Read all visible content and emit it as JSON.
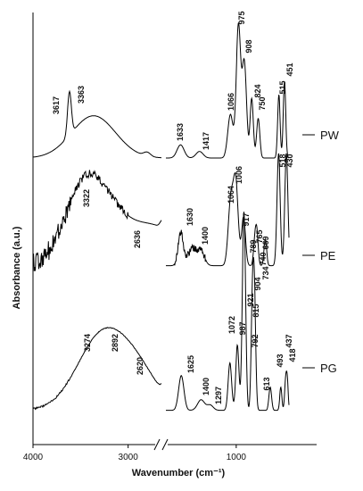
{
  "chart_data": {
    "type": "line",
    "xlabel": "Wavenumber (cm⁻¹)",
    "ylabel": "Absorbance (a.u.)",
    "x_ticks": [
      "4000",
      "3000",
      "1000"
    ],
    "x_break": true,
    "series": [
      {
        "name": "PW",
        "peak_labels": [
          "3617",
          "3363",
          "1633",
          "1417",
          "1066",
          "975",
          "908",
          "824",
          "750",
          "515",
          "451"
        ]
      },
      {
        "name": "PE",
        "peak_labels": [
          "3322",
          "2636",
          "1630",
          "1400",
          "1064",
          "1006",
          "917",
          "789",
          "765",
          "669",
          "740",
          "734",
          "518",
          "430"
        ]
      },
      {
        "name": "PG",
        "peak_labels": [
          "3274",
          "2892",
          "2620",
          "1625",
          "1400",
          "1297",
          "1072",
          "987",
          "921",
          "904",
          "815",
          "792",
          "613",
          "493",
          "437",
          "418"
        ]
      }
    ]
  }
}
